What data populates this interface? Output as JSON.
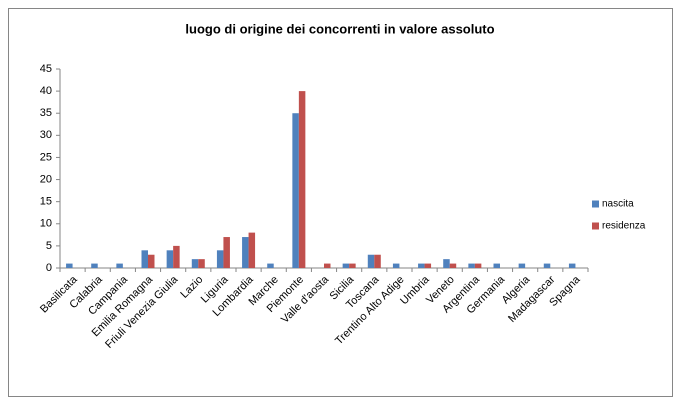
{
  "chart_data": {
    "type": "bar",
    "title": "luogo di origine dei concorrenti  in valore assoluto",
    "categories": [
      "Basilicata",
      "Calabria",
      "Campania",
      "Emilia Romagna",
      "Friuli Venezia Giulia",
      "Lazio",
      "Liguria",
      "Lombardia",
      "Marche",
      "Piemonte",
      "Valle d'aosta",
      "Sicilia",
      "Toscana",
      "Trentino Alto Adige",
      "Umbria",
      "Veneto",
      "Argentina",
      "Germania",
      "Algeria",
      "Madagascar",
      "Spagna"
    ],
    "series": [
      {
        "name": "nascita",
        "color": "#4f81bd",
        "values": [
          1,
          1,
          1,
          4,
          4,
          2,
          4,
          7,
          1,
          35,
          0,
          1,
          3,
          1,
          1,
          2,
          1,
          1,
          1,
          1,
          1
        ]
      },
      {
        "name": "residenza",
        "color": "#c0504d",
        "values": [
          0,
          0,
          0,
          3,
          5,
          2,
          7,
          8,
          0,
          40,
          1,
          1,
          3,
          0,
          1,
          1,
          1,
          0,
          0,
          0,
          0
        ]
      }
    ],
    "ylim": [
      0,
      45
    ],
    "yticks": [
      0,
      5,
      10,
      15,
      20,
      25,
      30,
      35,
      40,
      45
    ],
    "grid": false,
    "legend": "right"
  }
}
